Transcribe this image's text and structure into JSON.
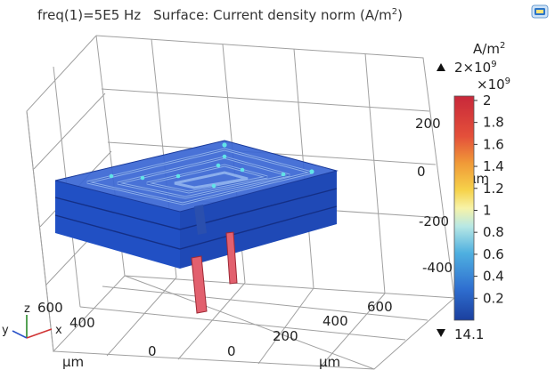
{
  "title": {
    "frequency": "freq(1)=5E5 Hz",
    "expression": "Surface: Current density norm (A/m",
    "expression_sup": "2",
    "expression_end": ")"
  },
  "chart_data": {
    "type": "surface-3d",
    "title": "freq(1)=5E5 Hz   Surface: Current density norm (A/m²)",
    "axes": {
      "x": {
        "label": "μm",
        "ticks": [
          "0",
          "200",
          "400",
          "600"
        ]
      },
      "y": {
        "label": "μm",
        "ticks": [
          "0",
          "400",
          "600"
        ]
      },
      "z": {
        "label": "μm",
        "ticks": [
          "200",
          "0",
          "-200",
          "-400"
        ]
      }
    },
    "colorbar": {
      "unit": "A/m",
      "unit_sup": "2",
      "max_label": "2×10",
      "max_sup": "9",
      "multiplier": "×10",
      "multiplier_sup": "9",
      "ticks": [
        "2",
        "1.8",
        "1.6",
        "1.4",
        "1.2",
        "1",
        "0.8",
        "0.6",
        "0.4",
        "0.2"
      ],
      "tick_values": [
        2,
        1.8,
        1.6,
        1.4,
        1.2,
        1,
        0.8,
        0.6,
        0.4,
        0.2
      ],
      "range": [
        1.41e-08,
        2
      ],
      "min_label": "14.1",
      "colormap": "rainbow"
    },
    "triad": {
      "x": "x",
      "y": "y",
      "z": "z"
    },
    "grid": true
  },
  "colors": {
    "block": "#2550c8",
    "block_dark": "#1c3fa8",
    "coil": "#6f9ae6",
    "hotspot": "#5ce0e6",
    "lead": "#e05a6a",
    "grid": "#9a9a9a"
  },
  "icons": {
    "corner": "camera-icon",
    "max_marker": "triangle-up-icon",
    "min_marker": "triangle-down-icon"
  }
}
